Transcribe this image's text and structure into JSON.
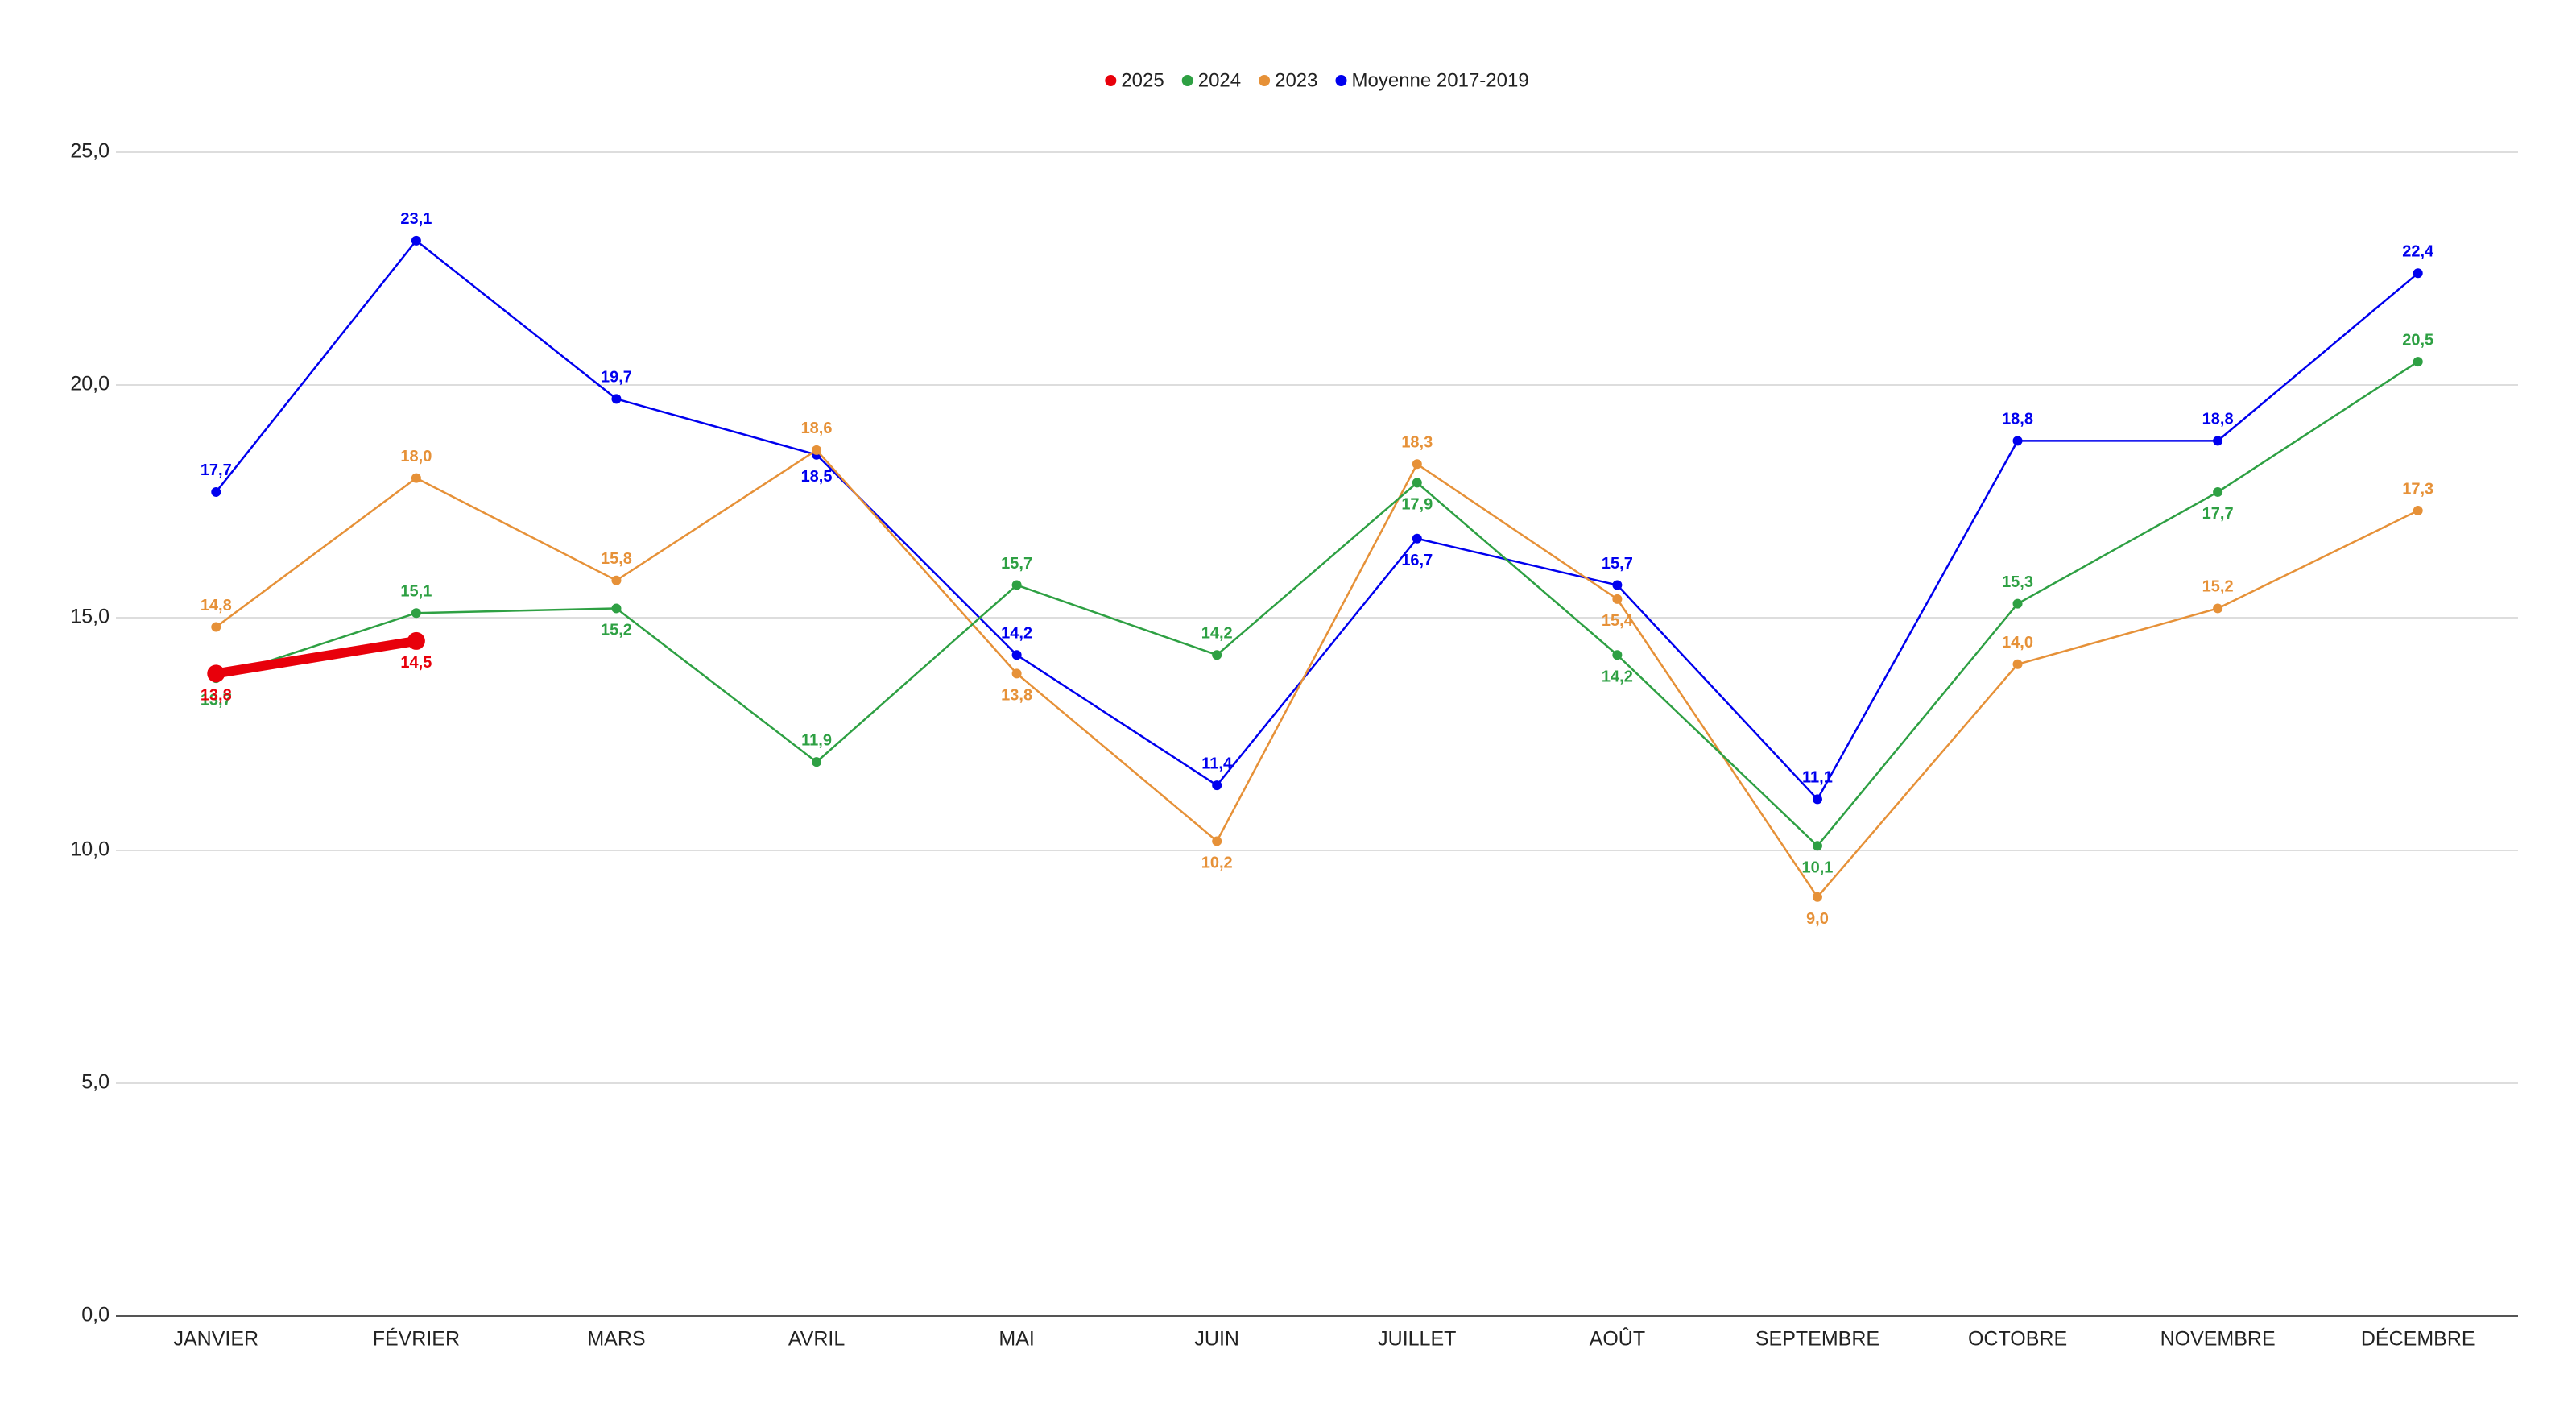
{
  "chart_data": {
    "type": "line",
    "categories": [
      "JANVIER",
      "FÉVRIER",
      "MARS",
      "AVRIL",
      "MAI",
      "JUIN",
      "JUILLET",
      "AOÛT",
      "SEPTEMBRE",
      "OCTOBRE",
      "NOVEMBRE",
      "DÉCEMBRE"
    ],
    "series": [
      {
        "name": "2025",
        "color": "#e8000b",
        "values": [
          13.8,
          14.5,
          null,
          null,
          null,
          null,
          null,
          null,
          null,
          null,
          null,
          null
        ],
        "value_labels": [
          "13,8",
          "14,5",
          null,
          null,
          null,
          null,
          null,
          null,
          null,
          null,
          null,
          null
        ]
      },
      {
        "name": "2024",
        "color": "#2ea043",
        "values": [
          13.7,
          15.1,
          15.2,
          11.9,
          15.7,
          14.2,
          17.9,
          14.2,
          10.1,
          15.3,
          17.7,
          20.5
        ],
        "value_labels": [
          "13,7",
          "15,1",
          "15,2",
          "11,9",
          "15,7",
          "14,2",
          "17,9",
          "14,2",
          "10,1",
          "15,3",
          "17,7",
          "20,5"
        ]
      },
      {
        "name": "2023",
        "color": "#e69138",
        "values": [
          14.8,
          18.0,
          15.8,
          18.6,
          13.8,
          10.2,
          18.3,
          15.4,
          9.0,
          14.0,
          15.2,
          17.3
        ],
        "value_labels": [
          "14,8",
          "18,0",
          "15,8",
          "18,6",
          "13,8",
          "10,2",
          "18,3",
          "15,4",
          "9,0",
          "14,0",
          "15,2",
          "17,3"
        ]
      },
      {
        "name": "Moyenne 2017-2019",
        "color": "#0000ee",
        "values": [
          17.7,
          23.1,
          19.7,
          18.5,
          14.2,
          11.4,
          16.7,
          15.7,
          11.1,
          18.8,
          18.8,
          22.4
        ],
        "value_labels": [
          "17,7",
          "23,1",
          "19,7",
          "18,5",
          "14,2",
          "11,4",
          "16,7",
          "15,7",
          "11,1",
          "18,8",
          "18,8",
          "22,4"
        ]
      }
    ],
    "ylim": [
      0,
      25
    ],
    "yticks": [
      {
        "value": 0,
        "label": "0,0"
      },
      {
        "value": 5,
        "label": "5,0"
      },
      {
        "value": 10,
        "label": "10,0"
      },
      {
        "value": 15,
        "label": "15,0"
      },
      {
        "value": 20,
        "label": "20,0"
      },
      {
        "value": 25,
        "label": "25,0"
      }
    ],
    "grid": true,
    "legend": "top"
  }
}
